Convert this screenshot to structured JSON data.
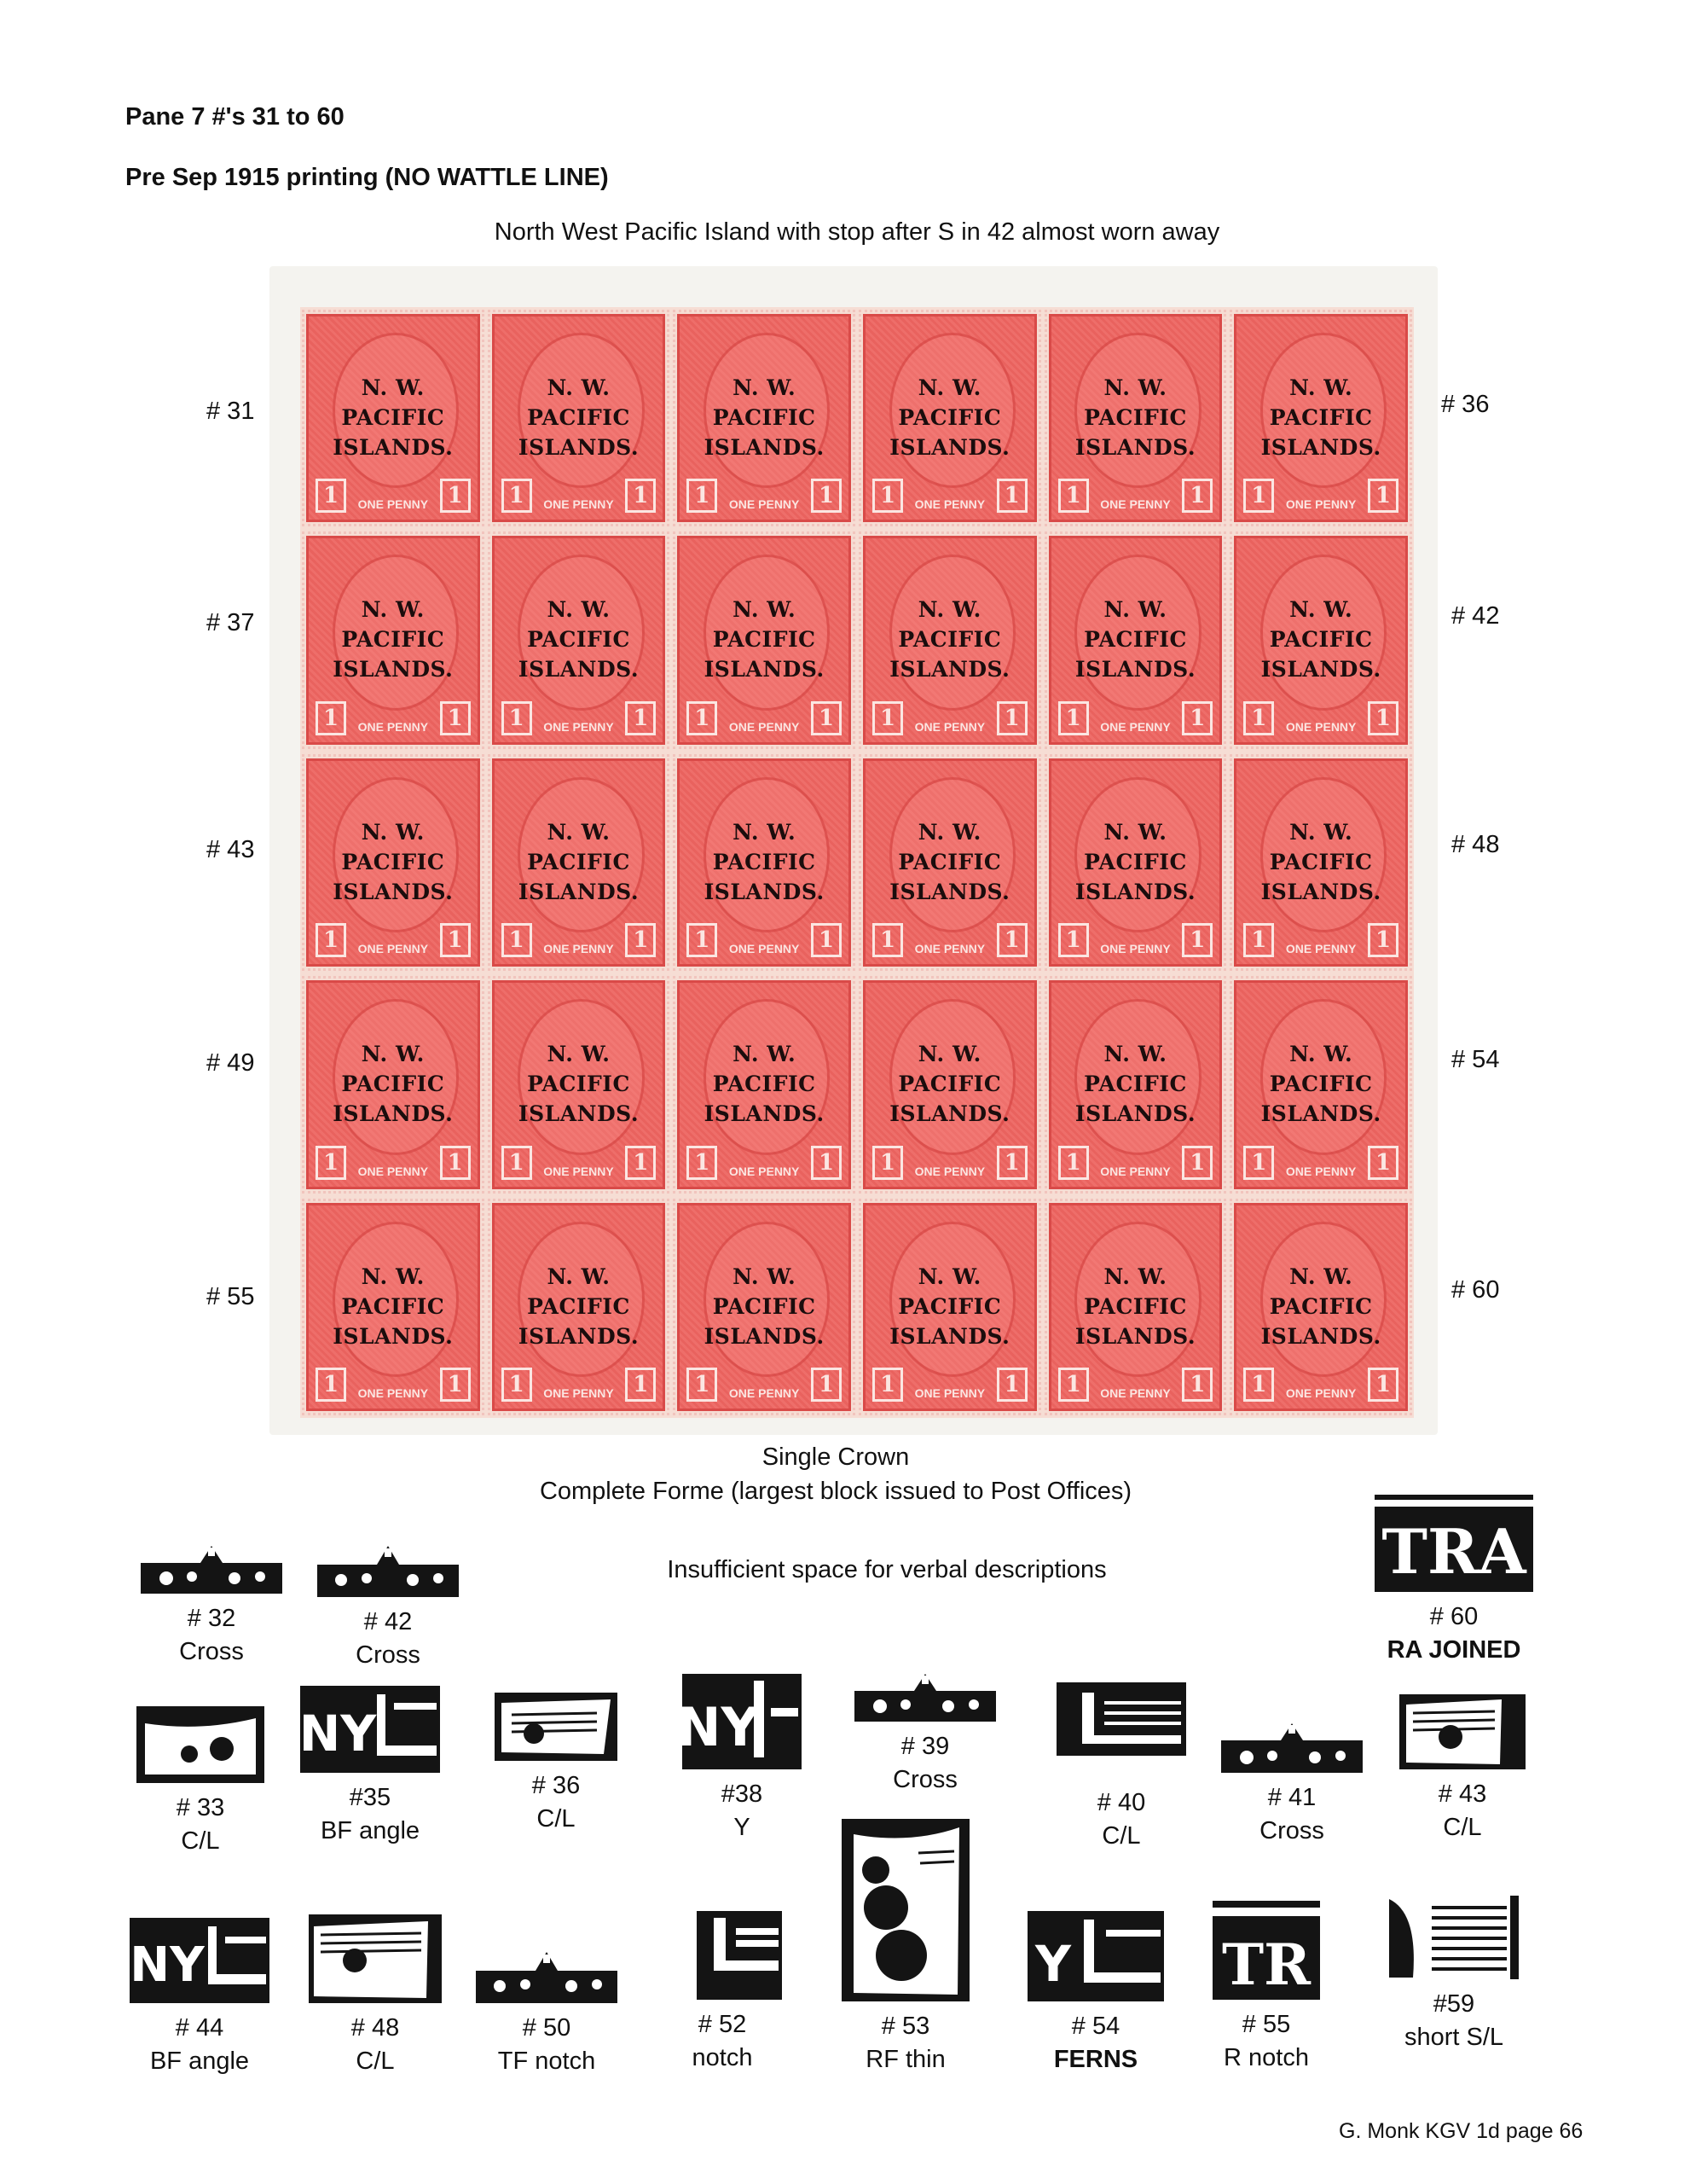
{
  "header": {
    "title": "Pane 7 #'s 31 to 60",
    "subtitle": "Pre Sep 1915 printing (NO WATTLE LINE)",
    "caption_top": "North West Pacific Island with stop after S in 42 almost worn away"
  },
  "overprint": {
    "line1": "N. W.",
    "line2": "PACIFIC",
    "line3": "ISLANDS.",
    "value": "ONE PENNY",
    "corner": "1"
  },
  "row_labels_left": [
    "# 31",
    "# 37",
    "# 43",
    "# 49",
    "# 55"
  ],
  "row_labels_right": [
    "# 36",
    "# 42",
    "# 48",
    "# 54",
    "# 60"
  ],
  "caption_bottom": {
    "line1": "Single Crown",
    "line2": "Complete Forme (largest block issued to Post Offices)"
  },
  "note": "Insufficient space for verbal descriptions",
  "flaws_row1": [
    {
      "num": "# 32",
      "desc": "Cross"
    },
    {
      "num": "# 42",
      "desc": "Cross"
    },
    {
      "num": "# 60",
      "desc": "RA JOINED"
    }
  ],
  "flaws_row2": [
    {
      "num": "# 33",
      "desc": "C/L"
    },
    {
      "num": "#35",
      "desc": "BF angle"
    },
    {
      "num": "# 36",
      "desc": "C/L"
    },
    {
      "num": "#38",
      "desc": "Y"
    },
    {
      "num": "# 39",
      "desc": "Cross"
    },
    {
      "num": "# 40",
      "desc": "C/L"
    },
    {
      "num": "# 41",
      "desc": "Cross"
    },
    {
      "num": "# 43",
      "desc": "C/L"
    }
  ],
  "flaws_row3": [
    {
      "num": "# 44",
      "desc": "BF angle"
    },
    {
      "num": "# 48",
      "desc": "C/L"
    },
    {
      "num": "# 50",
      "desc": "TF notch"
    },
    {
      "num": "# 52",
      "desc": "notch"
    },
    {
      "num": "# 53",
      "desc": "RF thin"
    },
    {
      "num": "# 54",
      "desc": "FERNS"
    },
    {
      "num": "# 55",
      "desc": "R notch"
    },
    {
      "num": "#59",
      "desc": "short S/L"
    }
  ],
  "footer": "G. Monk  KGV 1d  page  66"
}
